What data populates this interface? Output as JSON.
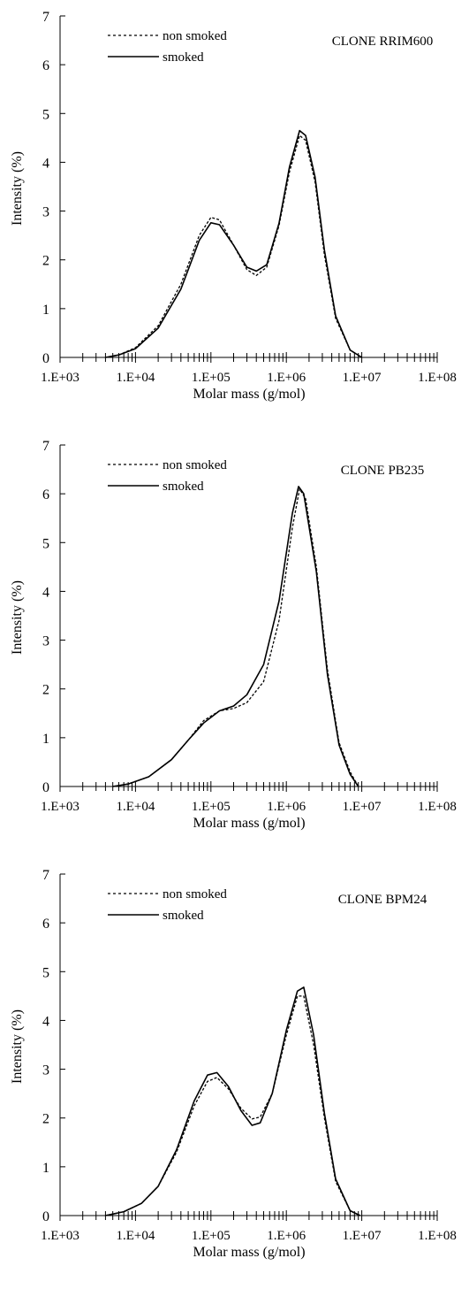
{
  "chart_data": [
    {
      "type": "line",
      "title": "CLONE RRIM600",
      "xlabel": "Molar mass (g/mol)",
      "ylabel": "Intensity (%)",
      "xscale": "log",
      "xlim": [
        1000,
        100000000
      ],
      "ylim": [
        0,
        7
      ],
      "x_tick_labels": [
        "1.E+03",
        "1.E+04",
        "1.E+05",
        "1.E+06",
        "1.E+07",
        "1.E+08"
      ],
      "y_tick_labels": [
        "0",
        "1",
        "2",
        "3",
        "4",
        "5",
        "6",
        "7"
      ],
      "grid": false,
      "legend_position": "top-left",
      "series": [
        {
          "name": "non smoked",
          "style": "dotted",
          "points": [
            [
              4000,
              0
            ],
            [
              6000,
              0.05
            ],
            [
              10000,
              0.2
            ],
            [
              20000,
              0.65
            ],
            [
              40000,
              1.5
            ],
            [
              70000,
              2.5
            ],
            [
              100000,
              2.87
            ],
            [
              130000,
              2.82
            ],
            [
              200000,
              2.3
            ],
            [
              300000,
              1.8
            ],
            [
              400000,
              1.68
            ],
            [
              550000,
              1.85
            ],
            [
              800000,
              2.7
            ],
            [
              1100000,
              3.8
            ],
            [
              1500000,
              4.55
            ],
            [
              1800000,
              4.45
            ],
            [
              2400000,
              3.6
            ],
            [
              3200000,
              2.1
            ],
            [
              4500000,
              0.8
            ],
            [
              7000000,
              0.15
            ],
            [
              10000000,
              0
            ]
          ]
        },
        {
          "name": "smoked",
          "style": "solid",
          "points": [
            [
              4000,
              0
            ],
            [
              6000,
              0.05
            ],
            [
              10000,
              0.18
            ],
            [
              20000,
              0.6
            ],
            [
              40000,
              1.4
            ],
            [
              70000,
              2.4
            ],
            [
              100000,
              2.76
            ],
            [
              130000,
              2.72
            ],
            [
              200000,
              2.3
            ],
            [
              300000,
              1.85
            ],
            [
              400000,
              1.77
            ],
            [
              550000,
              1.9
            ],
            [
              800000,
              2.75
            ],
            [
              1100000,
              3.9
            ],
            [
              1500000,
              4.65
            ],
            [
              1800000,
              4.55
            ],
            [
              2400000,
              3.7
            ],
            [
              3200000,
              2.2
            ],
            [
              4500000,
              0.85
            ],
            [
              7000000,
              0.15
            ],
            [
              10000000,
              0
            ]
          ]
        }
      ]
    },
    {
      "type": "line",
      "title": "CLONE PB235",
      "xlabel": "Molar mass (g/mol)",
      "ylabel": "Intensity (%)",
      "xscale": "log",
      "xlim": [
        1000,
        100000000
      ],
      "ylim": [
        0,
        7
      ],
      "x_tick_labels": [
        "1.E+03",
        "1.E+04",
        "1.E+05",
        "1.E+06",
        "1.E+07",
        "1.E+08"
      ],
      "y_tick_labels": [
        "0",
        "1",
        "2",
        "3",
        "4",
        "5",
        "6",
        "7"
      ],
      "grid": false,
      "legend_position": "top-left",
      "series": [
        {
          "name": "non smoked",
          "style": "dotted",
          "points": [
            [
              5000,
              0
            ],
            [
              8000,
              0.05
            ],
            [
              15000,
              0.2
            ],
            [
              30000,
              0.55
            ],
            [
              50000,
              0.95
            ],
            [
              80000,
              1.35
            ],
            [
              130000,
              1.55
            ],
            [
              200000,
              1.6
            ],
            [
              300000,
              1.72
            ],
            [
              500000,
              2.15
            ],
            [
              800000,
              3.4
            ],
            [
              1200000,
              5.3
            ],
            [
              1500000,
              6.1
            ],
            [
              1800000,
              5.9
            ],
            [
              2500000,
              4.5
            ],
            [
              3500000,
              2.4
            ],
            [
              5000000,
              0.9
            ],
            [
              7000000,
              0.3
            ],
            [
              9000000,
              0
            ]
          ]
        },
        {
          "name": "smoked",
          "style": "solid",
          "points": [
            [
              5000,
              0
            ],
            [
              8000,
              0.05
            ],
            [
              15000,
              0.2
            ],
            [
              30000,
              0.55
            ],
            [
              50000,
              0.95
            ],
            [
              80000,
              1.3
            ],
            [
              130000,
              1.55
            ],
            [
              200000,
              1.65
            ],
            [
              300000,
              1.88
            ],
            [
              500000,
              2.5
            ],
            [
              800000,
              3.8
            ],
            [
              1200000,
              5.6
            ],
            [
              1450000,
              6.15
            ],
            [
              1700000,
              6.0
            ],
            [
              2500000,
              4.4
            ],
            [
              3500000,
              2.3
            ],
            [
              5000000,
              0.85
            ],
            [
              7000000,
              0.25
            ],
            [
              9000000,
              0
            ]
          ]
        }
      ]
    },
    {
      "type": "line",
      "title": "CLONE BPM24",
      "xlabel": "Molar mass (g/mol)",
      "ylabel": "Intensity (%)",
      "xscale": "log",
      "xlim": [
        1000,
        100000000
      ],
      "ylim": [
        0,
        7
      ],
      "x_tick_labels": [
        "1.E+03",
        "1.E+04",
        "1.E+05",
        "1.E+06",
        "1.E+07",
        "1.E+08"
      ],
      "y_tick_labels": [
        "0",
        "1",
        "2",
        "3",
        "4",
        "5",
        "6",
        "7"
      ],
      "grid": false,
      "legend_position": "top-left",
      "series": [
        {
          "name": "non smoked",
          "style": "dotted",
          "points": [
            [
              4000,
              0
            ],
            [
              7000,
              0.08
            ],
            [
              12000,
              0.25
            ],
            [
              20000,
              0.6
            ],
            [
              35000,
              1.3
            ],
            [
              60000,
              2.25
            ],
            [
              90000,
              2.75
            ],
            [
              120000,
              2.83
            ],
            [
              170000,
              2.6
            ],
            [
              250000,
              2.2
            ],
            [
              350000,
              1.98
            ],
            [
              450000,
              2.02
            ],
            [
              650000,
              2.5
            ],
            [
              1000000,
              3.7
            ],
            [
              1400000,
              4.5
            ],
            [
              1700000,
              4.5
            ],
            [
              2300000,
              3.5
            ],
            [
              3200000,
              2.0
            ],
            [
              4500000,
              0.7
            ],
            [
              7000000,
              0.1
            ],
            [
              9500000,
              0
            ]
          ]
        },
        {
          "name": "smoked",
          "style": "solid",
          "points": [
            [
              4000,
              0
            ],
            [
              7000,
              0.08
            ],
            [
              12000,
              0.25
            ],
            [
              20000,
              0.6
            ],
            [
              35000,
              1.35
            ],
            [
              60000,
              2.35
            ],
            [
              90000,
              2.88
            ],
            [
              120000,
              2.93
            ],
            [
              170000,
              2.65
            ],
            [
              250000,
              2.15
            ],
            [
              350000,
              1.85
            ],
            [
              450000,
              1.9
            ],
            [
              650000,
              2.5
            ],
            [
              1000000,
              3.8
            ],
            [
              1400000,
              4.6
            ],
            [
              1700000,
              4.68
            ],
            [
              2300000,
              3.7
            ],
            [
              3200000,
              2.1
            ],
            [
              4500000,
              0.75
            ],
            [
              7000000,
              0.1
            ],
            [
              9500000,
              0
            ]
          ]
        }
      ]
    }
  ]
}
